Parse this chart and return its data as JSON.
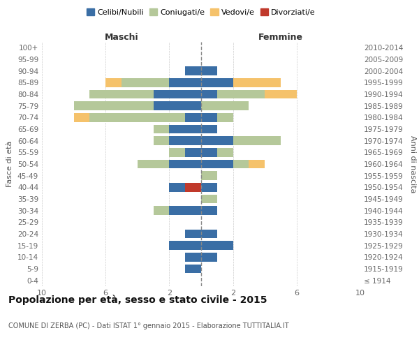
{
  "age_groups": [
    "100+",
    "95-99",
    "90-94",
    "85-89",
    "80-84",
    "75-79",
    "70-74",
    "65-69",
    "60-64",
    "55-59",
    "50-54",
    "45-49",
    "40-44",
    "35-39",
    "30-34",
    "25-29",
    "20-24",
    "15-19",
    "10-14",
    "5-9",
    "0-4"
  ],
  "birth_years": [
    "≤ 1914",
    "1915-1919",
    "1920-1924",
    "1925-1929",
    "1930-1934",
    "1935-1939",
    "1940-1944",
    "1945-1949",
    "1950-1954",
    "1955-1959",
    "1960-1964",
    "1965-1969",
    "1970-1974",
    "1975-1979",
    "1980-1984",
    "1985-1989",
    "1990-1994",
    "1995-1999",
    "2000-2004",
    "2005-2009",
    "2010-2014"
  ],
  "males": {
    "celibi": [
      0,
      0,
      1,
      2,
      3,
      3,
      1,
      2,
      2,
      1,
      2,
      0,
      1,
      0,
      2,
      0,
      1,
      2,
      1,
      1,
      0
    ],
    "coniugati": [
      0,
      0,
      0,
      3,
      4,
      5,
      6,
      1,
      1,
      1,
      2,
      0,
      0,
      0,
      1,
      0,
      0,
      0,
      0,
      0,
      0
    ],
    "vedovi": [
      0,
      0,
      0,
      1,
      0,
      0,
      1,
      0,
      0,
      0,
      0,
      0,
      0,
      0,
      0,
      0,
      0,
      0,
      0,
      0,
      0
    ],
    "divorziati": [
      0,
      0,
      0,
      0,
      0,
      0,
      0,
      0,
      0,
      0,
      0,
      0,
      1,
      0,
      0,
      0,
      0,
      0,
      0,
      0,
      0
    ]
  },
  "females": {
    "nubili": [
      0,
      0,
      1,
      2,
      1,
      0,
      1,
      1,
      2,
      1,
      2,
      0,
      1,
      0,
      1,
      0,
      1,
      2,
      1,
      0,
      0
    ],
    "coniugate": [
      0,
      0,
      0,
      0,
      3,
      3,
      1,
      0,
      3,
      1,
      1,
      1,
      0,
      1,
      0,
      0,
      0,
      0,
      0,
      0,
      0
    ],
    "vedove": [
      0,
      0,
      0,
      3,
      2,
      0,
      0,
      0,
      0,
      0,
      1,
      0,
      0,
      0,
      0,
      0,
      0,
      0,
      0,
      0,
      0
    ],
    "divorziate": [
      0,
      0,
      0,
      0,
      0,
      0,
      0,
      0,
      0,
      0,
      0,
      0,
      0,
      0,
      0,
      0,
      0,
      0,
      0,
      0,
      0
    ]
  },
  "colors": {
    "celibi_nubili": "#3a6ea5",
    "coniugati": "#b5c89a",
    "vedovi": "#f5c26b",
    "divorziati": "#c0392b"
  },
  "xlim": 10,
  "xticks": [
    -10,
    -6,
    -2,
    2,
    6,
    10
  ],
  "title": "Popolazione per età, sesso e stato civile - 2015",
  "subtitle": "COMUNE DI ZERBA (PC) - Dati ISTAT 1° gennaio 2015 - Elaborazione TUTTITALIA.IT",
  "ylabel_left": "Fasce di età",
  "ylabel_right": "Anni di nascita",
  "xlabel_left": "Maschi",
  "xlabel_right": "Femmine",
  "legend_labels": [
    "Celibi/Nubili",
    "Coniugati/e",
    "Vedovi/e",
    "Divorziati/e"
  ],
  "background_color": "#ffffff",
  "bar_height": 0.75
}
